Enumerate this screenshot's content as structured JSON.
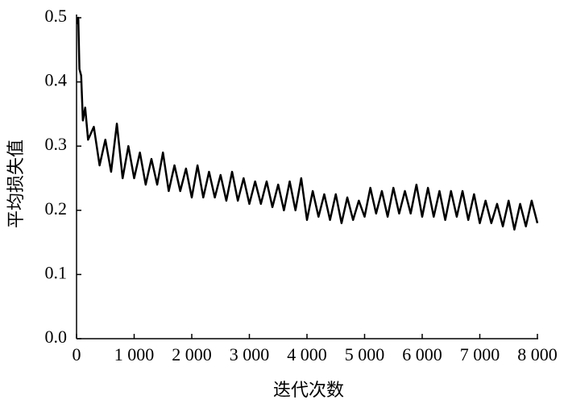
{
  "chart_data": {
    "type": "line",
    "x_label": "迭代次数",
    "y_label": "平均损失值",
    "color": "#000000",
    "x": [
      10,
      30,
      50,
      80,
      110,
      150,
      200,
      300,
      400,
      500,
      600,
      700,
      800,
      900,
      1000,
      1100,
      1200,
      1300,
      1400,
      1500,
      1600,
      1700,
      1800,
      1900,
      2000,
      2100,
      2200,
      2300,
      2400,
      2500,
      2600,
      2700,
      2800,
      2900,
      3000,
      3100,
      3200,
      3300,
      3400,
      3500,
      3600,
      3700,
      3800,
      3900,
      4000,
      4100,
      4200,
      4300,
      4400,
      4500,
      4600,
      4700,
      4800,
      4900,
      5000,
      5100,
      5200,
      5300,
      5400,
      5500,
      5600,
      5700,
      5800,
      5900,
      6000,
      6100,
      6200,
      6300,
      6400,
      6500,
      6600,
      6700,
      6800,
      6900,
      7000,
      7100,
      7200,
      7300,
      7400,
      7500,
      7600,
      7700,
      7800,
      7900,
      8000
    ],
    "values": [
      0.49,
      0.5,
      0.42,
      0.41,
      0.34,
      0.36,
      0.31,
      0.33,
      0.27,
      0.31,
      0.26,
      0.335,
      0.25,
      0.3,
      0.25,
      0.29,
      0.24,
      0.28,
      0.24,
      0.29,
      0.23,
      0.27,
      0.23,
      0.265,
      0.22,
      0.27,
      0.22,
      0.26,
      0.22,
      0.255,
      0.215,
      0.26,
      0.215,
      0.25,
      0.21,
      0.245,
      0.21,
      0.245,
      0.205,
      0.24,
      0.2,
      0.245,
      0.2,
      0.25,
      0.185,
      0.23,
      0.19,
      0.225,
      0.185,
      0.225,
      0.18,
      0.22,
      0.185,
      0.215,
      0.19,
      0.235,
      0.195,
      0.23,
      0.19,
      0.235,
      0.195,
      0.23,
      0.195,
      0.24,
      0.19,
      0.235,
      0.19,
      0.23,
      0.185,
      0.23,
      0.19,
      0.23,
      0.185,
      0.225,
      0.18,
      0.215,
      0.18,
      0.21,
      0.175,
      0.215,
      0.17,
      0.21,
      0.175,
      0.215,
      0.18
    ],
    "xlim": [
      0,
      8000
    ],
    "xticks": [
      0,
      {
        "value": 1000,
        "label": "1 000"
      },
      {
        "value": 2000,
        "label": "2 000"
      },
      {
        "value": 3000,
        "label": "3 000"
      },
      {
        "value": 4000,
        "label": "4 000"
      },
      {
        "value": 5000,
        "label": "5 000"
      },
      {
        "value": 6000,
        "label": "6 000"
      },
      {
        "value": 7000,
        "label": "7 000"
      },
      {
        "value": 8000,
        "label": "8 000"
      }
    ],
    "ylim": [
      0,
      0.5
    ],
    "yticks": [
      {
        "value": 0,
        "label": "0.0"
      },
      0.1,
      0.2,
      0.3,
      0.4,
      0.5
    ]
  }
}
